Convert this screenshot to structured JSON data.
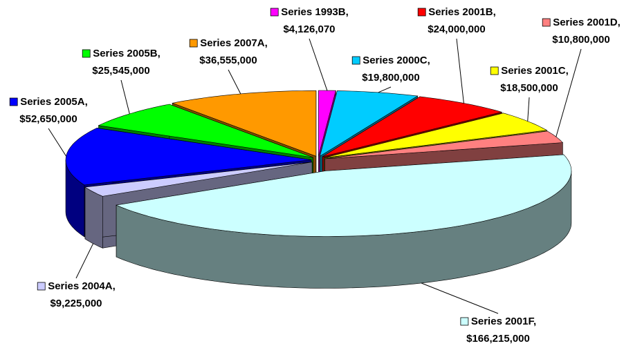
{
  "chart_data": {
    "type": "pie",
    "categories": [
      "Series 1993B,",
      "Series 2000C,",
      "Series 2001B,",
      "Series 2001C,",
      "Series 2001D,",
      "Series 2001F,",
      "Series 2004A,",
      "Series 2005A,",
      "Series 2005B,",
      "Series 2007A,"
    ],
    "values": [
      4126070,
      19800000,
      24000000,
      18500000,
      10800000,
      166215000,
      9225000,
      52650000,
      25545000,
      36555000
    ],
    "value_labels": [
      "$4,126,070",
      "$19,800,000",
      "$24,000,000",
      "$18,500,000",
      "$10,800,000",
      "$166,215,000",
      "$9,225,000",
      "$52,650,000",
      "$25,545,000",
      "$36,555,000"
    ],
    "colors": [
      "#ff00ff",
      "#00ccff",
      "#ff0000",
      "#ffff00",
      "#ff8080",
      "#ccffff",
      "#ccccff",
      "#0000ff",
      "#00ff00",
      "#ff9900"
    ]
  }
}
